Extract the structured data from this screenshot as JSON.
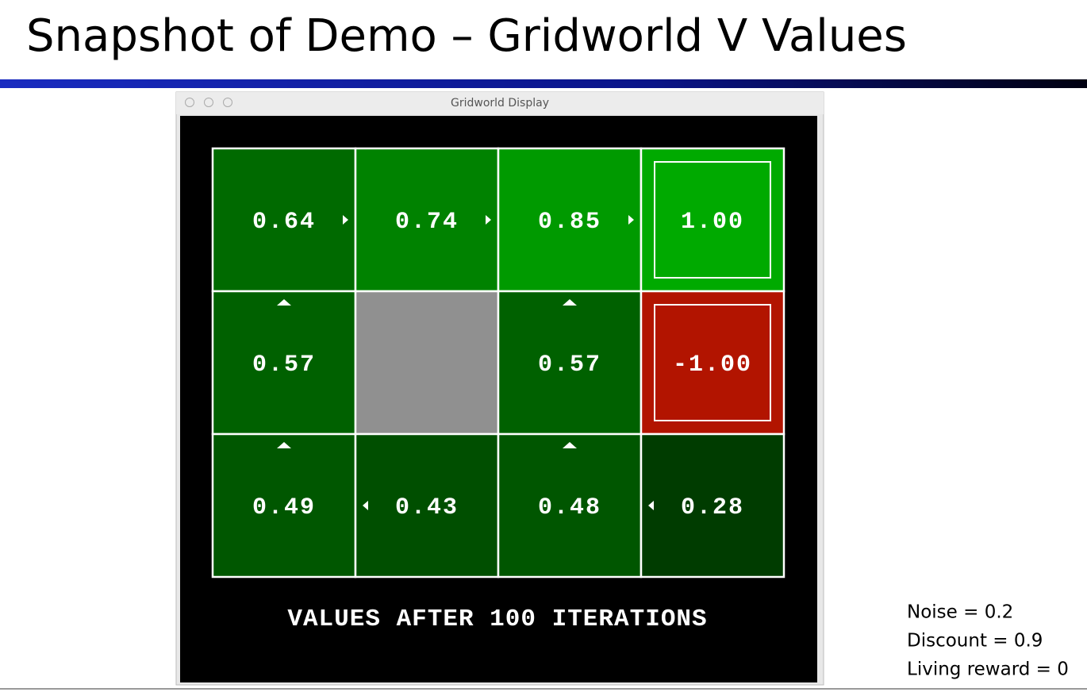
{
  "slide_title": "Snapshot of Demo – Gridworld V Values",
  "window": {
    "title": "Gridworld Display",
    "grid": {
      "rows": [
        [
          {
            "label": "0.64",
            "color": "#006a00",
            "arrow": "right"
          },
          {
            "label": "0.74",
            "color": "#008200",
            "arrow": "right"
          },
          {
            "label": "0.85",
            "color": "#009a00",
            "arrow": "right"
          },
          {
            "label": "1.00",
            "color": "#00aa00",
            "terminal": true
          }
        ],
        [
          {
            "label": "0.57",
            "color": "#006100",
            "arrow": "up"
          },
          {
            "color": "#909090",
            "wall": true
          },
          {
            "label": "0.57",
            "color": "#006100",
            "arrow": "up"
          },
          {
            "label": "-1.00",
            "color": "#b21400",
            "terminal": true
          }
        ],
        [
          {
            "label": "0.49",
            "color": "#005700",
            "arrow": "up"
          },
          {
            "label": "0.43",
            "color": "#004f00",
            "arrow": "left"
          },
          {
            "label": "0.48",
            "color": "#005600",
            "arrow": "up"
          },
          {
            "label": "0.28",
            "color": "#003c00",
            "arrow": "left"
          }
        ]
      ]
    },
    "caption": "VALUES AFTER 100 ITERATIONS"
  },
  "parameters": [
    "Noise = 0.2",
    "Discount = 0.9",
    "Living reward = 0"
  ]
}
